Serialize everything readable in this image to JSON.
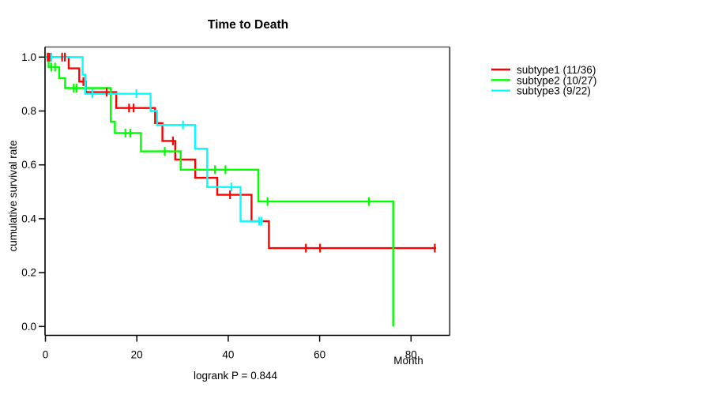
{
  "chart_data": {
    "type": "line",
    "subtype": "kaplan-meier-step-survival",
    "title": "Time to Death",
    "xlabel": "Month",
    "ylabel": "cumulative survival rate",
    "annotation": "logrank P = 0.844",
    "xlim": [
      0,
      88.5
    ],
    "ylim": [
      0,
      1.0
    ],
    "xticks": [
      0,
      20,
      40,
      60,
      80
    ],
    "yticks": [
      0.0,
      0.2,
      0.4,
      0.6,
      0.8,
      1.0
    ],
    "grid": false,
    "legend_position": "right-outside",
    "axis_colors": {
      "left": "#000000",
      "bottom": "#000000",
      "top": "#808080",
      "right": "#333333"
    },
    "series": [
      {
        "name": "subtype1",
        "label": "subtype1 (11/36)",
        "events": "11/36",
        "color": "#ff0000",
        "start": [
          0,
          1.0
        ],
        "steps": [
          [
            5.1,
            0.958
          ],
          [
            7.4,
            0.909
          ],
          [
            8.8,
            0.87
          ],
          [
            15.5,
            0.811
          ],
          [
            24.0,
            0.755
          ],
          [
            25.6,
            0.689
          ],
          [
            28.4,
            0.62
          ],
          [
            32.8,
            0.552
          ],
          [
            37.6,
            0.489
          ],
          [
            45.1,
            0.391
          ],
          [
            48.9,
            0.291
          ]
        ],
        "end_month": 85.5,
        "censors": [
          [
            0.5,
            1.0
          ],
          [
            0.9,
            1.0
          ],
          [
            3.65,
            1.0
          ],
          [
            4.25,
            1.0
          ],
          [
            8.3,
            0.909
          ],
          [
            13.4,
            0.87
          ],
          [
            18.3,
            0.811
          ],
          [
            19.3,
            0.811
          ],
          [
            27.9,
            0.689
          ],
          [
            40.4,
            0.489
          ],
          [
            57.0,
            0.291
          ],
          [
            60.1,
            0.291
          ],
          [
            85.2,
            0.291
          ]
        ]
      },
      {
        "name": "subtype2",
        "label": "subtype2 (10/27)",
        "events": "10/27",
        "color": "#00ff00",
        "start": [
          0,
          1.0
        ],
        "steps": [
          [
            0.7,
            0.963
          ],
          [
            3.0,
            0.922
          ],
          [
            4.3,
            0.885
          ],
          [
            14.3,
            0.76
          ],
          [
            15.2,
            0.718
          ],
          [
            20.9,
            0.65
          ],
          [
            29.6,
            0.582
          ],
          [
            46.6,
            0.464
          ],
          [
            76.1,
            0.0
          ]
        ],
        "end_month": 76.1,
        "censors": [
          [
            1.3,
            0.963
          ],
          [
            2.1,
            0.963
          ],
          [
            6.2,
            0.885
          ],
          [
            6.8,
            0.885
          ],
          [
            17.5,
            0.718
          ],
          [
            18.6,
            0.718
          ],
          [
            26.1,
            0.65
          ],
          [
            37.1,
            0.582
          ],
          [
            39.4,
            0.582
          ],
          [
            48.6,
            0.464
          ],
          [
            70.8,
            0.464
          ]
        ]
      },
      {
        "name": "subtype3",
        "label": "subtype3 (9/22)",
        "events": "9/22",
        "color": "#00ffff",
        "start": [
          0,
          1.0
        ],
        "steps": [
          [
            8.15,
            0.935
          ],
          [
            8.7,
            0.864
          ],
          [
            23.0,
            0.8
          ],
          [
            24.4,
            0.748
          ],
          [
            32.8,
            0.66
          ],
          [
            35.4,
            0.518
          ],
          [
            42.7,
            0.391
          ]
        ],
        "end_month": 47.6,
        "censors": [
          [
            1.3,
            1.0
          ],
          [
            10.3,
            0.864
          ],
          [
            19.9,
            0.864
          ],
          [
            30.1,
            0.748
          ],
          [
            40.7,
            0.518
          ],
          [
            46.75,
            0.391
          ],
          [
            47.3,
            0.391
          ]
        ]
      }
    ]
  }
}
